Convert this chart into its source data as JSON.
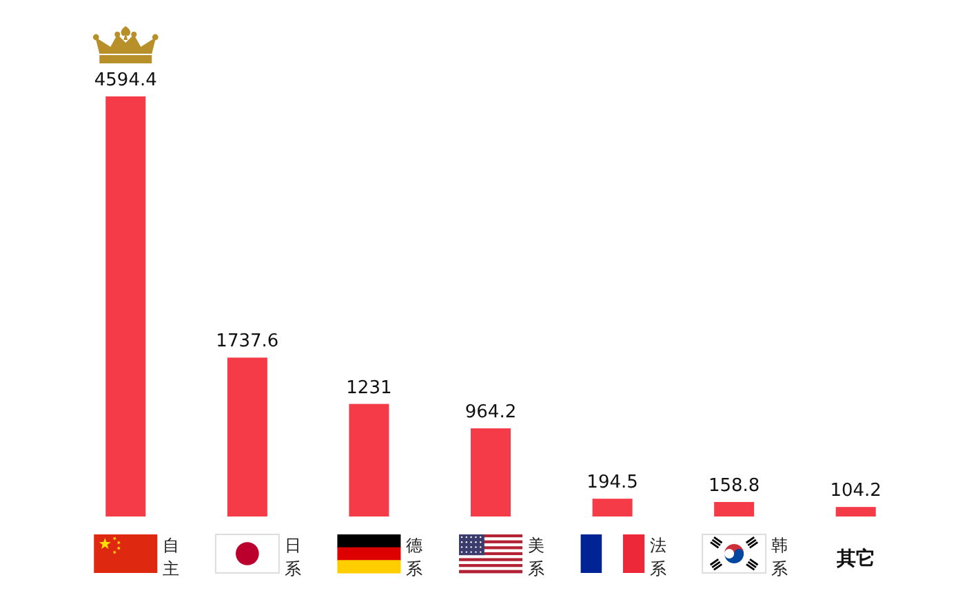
{
  "chart_data": {
    "type": "bar",
    "categories": [
      "自主",
      "日系",
      "德系",
      "美系",
      "法系",
      "韩系",
      "其它"
    ],
    "values": [
      4594.4,
      1737.6,
      1231,
      964.2,
      194.5,
      158.8,
      104.2
    ],
    "color": "#f43b47",
    "data_labels": true
  }
}
